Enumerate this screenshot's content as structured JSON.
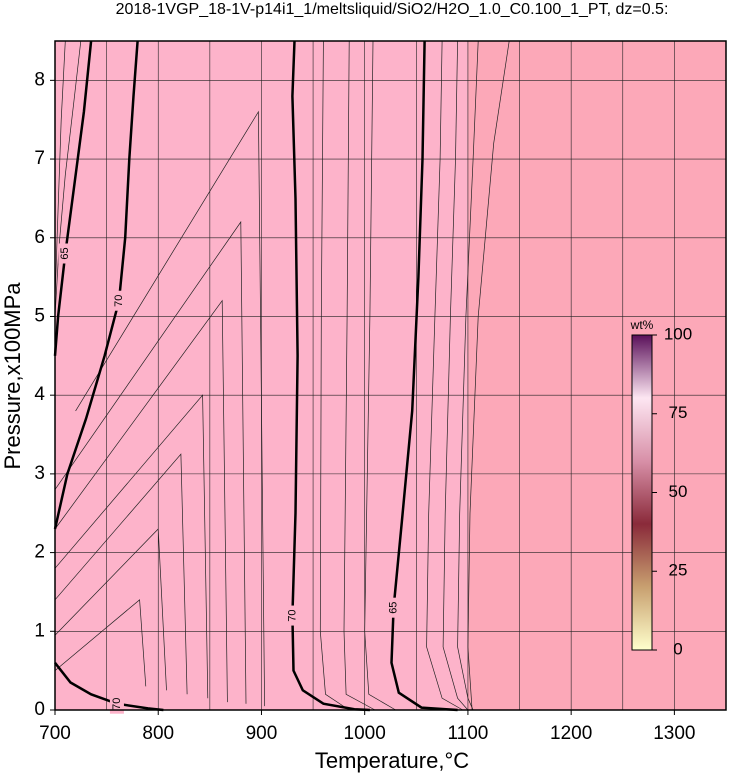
{
  "chart_data": {
    "type": "contour",
    "title": "2018-1VGP_18-1V-p14i1_1/meltsliquid/SiO2/H2O_1.0_C0.100_1_PT, dz=0.5:",
    "xlabel": "Temperature,°C",
    "ylabel": "Pressure,x100MPa",
    "xlim": [
      700,
      1350
    ],
    "ylim": [
      0,
      8.5
    ],
    "xticks": [
      700,
      800,
      900,
      1000,
      1100,
      1200,
      1300
    ],
    "yticks": [
      0,
      1,
      2,
      3,
      4,
      5,
      6,
      7,
      8
    ],
    "xgrid": [
      750,
      800,
      850,
      900,
      950,
      1000,
      1050,
      1100,
      1150,
      1200,
      1250,
      1300
    ],
    "fill": [
      {
        "x": [
          700,
          1100
        ],
        "color": "#fdb3ca"
      },
      {
        "x": [
          1100,
          1350
        ],
        "color": "#fca8b8"
      }
    ],
    "contours": [
      {
        "level": 70,
        "width": 2.5,
        "x": [
          700,
          712,
          730,
          748,
          762,
          768,
          772,
          776,
          780
        ],
        "y": [
          2.3,
          3.0,
          3.7,
          4.5,
          5.2,
          6.0,
          7.0,
          7.8,
          8.5
        ]
      },
      {
        "level": 70,
        "width": 2.5,
        "x": [
          700,
          715,
          735,
          760,
          790,
          805
        ],
        "y": [
          0.6,
          0.35,
          0.2,
          0.08,
          0.02,
          0
        ]
      },
      {
        "level": 70,
        "width": 2.5,
        "x": [
          932,
          930,
          933,
          935,
          933,
          930,
          931,
          940,
          960,
          990,
          1005
        ],
        "y": [
          8.5,
          7.8,
          6.5,
          4.5,
          2.5,
          1.2,
          0.5,
          0.25,
          0.08,
          0.01,
          0
        ]
      },
      {
        "level": 65,
        "width": 2.5,
        "x": [
          1058,
          1056,
          1052,
          1046,
          1036,
          1028,
          1026,
          1033,
          1055,
          1090
        ],
        "y": [
          8.5,
          7.0,
          5.5,
          3.8,
          2.4,
          1.3,
          0.6,
          0.22,
          0.03,
          0
        ]
      },
      {
        "level": 65,
        "width": 2.5,
        "x": [
          735,
          728,
          718,
          710,
          703,
          700
        ],
        "y": [
          8.5,
          7.6,
          6.6,
          5.8,
          5.0,
          4.5
        ]
      }
    ],
    "thin_contours": [
      {
        "x": [
          700,
          782,
          788
        ],
        "y": [
          0.5,
          1.4,
          0.3
        ]
      },
      {
        "x": [
          700,
          800,
          808
        ],
        "y": [
          0.95,
          2.3,
          0.25
        ]
      },
      {
        "x": [
          700,
          822,
          828
        ],
        "y": [
          1.4,
          3.25,
          0.2
        ]
      },
      {
        "x": [
          700,
          843,
          848
        ],
        "y": [
          1.8,
          4.0,
          0.15
        ]
      },
      {
        "x": [
          700,
          862,
          867
        ],
        "y": [
          2.3,
          5.2,
          0.1
        ]
      },
      {
        "x": [
          700,
          880,
          885
        ],
        "y": [
          2.8,
          6.2,
          0.08
        ]
      },
      {
        "x": [
          720,
          897,
          903
        ],
        "y": [
          3.8,
          7.6,
          0.05
        ]
      },
      {
        "x": [
          960,
          958,
          957,
          962,
          985
        ],
        "y": [
          8.5,
          5.0,
          1.0,
          0.2,
          0
        ]
      },
      {
        "x": [
          985,
          983,
          980,
          982,
          1010
        ],
        "y": [
          8.5,
          5.0,
          1.0,
          0.2,
          0
        ]
      },
      {
        "x": [
          1008,
          1005,
          1000,
          1004,
          1030
        ],
        "y": [
          8.5,
          5.0,
          1.0,
          0.2,
          0
        ]
      },
      {
        "x": [
          1075,
          1073,
          1068,
          1062,
          1060,
          1075,
          1095
        ],
        "y": [
          8.5,
          7.0,
          5.0,
          2.5,
          0.8,
          0.15,
          0
        ]
      },
      {
        "x": [
          1090,
          1088,
          1083,
          1078,
          1076,
          1090,
          1100
        ],
        "y": [
          8.5,
          7.0,
          5.0,
          2.5,
          0.8,
          0.15,
          0
        ]
      },
      {
        "x": [
          1110,
          1105,
          1098,
          1092,
          1090,
          1100,
          1105
        ],
        "y": [
          8.5,
          7.0,
          5.0,
          2.5,
          0.8,
          0.15,
          0
        ]
      },
      {
        "x": [
          1140,
          1125,
          1110,
          1102,
          1100,
          1104
        ],
        "y": [
          8.5,
          7.2,
          5.0,
          2.5,
          0.8,
          0
        ]
      },
      {
        "x": [
          710,
          706,
          702,
          700
        ],
        "y": [
          8.5,
          7.5,
          6.0,
          5.2
        ]
      },
      {
        "x": [
          725,
          718,
          710,
          704,
          700
        ],
        "y": [
          8.5,
          7.7,
          6.8,
          5.9,
          5.0
        ]
      }
    ],
    "colorbar": {
      "label": "wt%",
      "lim": [
        0,
        100
      ],
      "ticks": [
        0,
        25,
        50,
        75,
        100
      ],
      "colors": [
        "#ffffcc",
        "#c8a070",
        "#8a2a3a",
        "#d890a8",
        "#fde6f2",
        "#5a105a"
      ]
    }
  }
}
